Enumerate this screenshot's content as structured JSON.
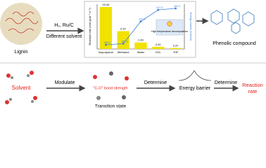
{
  "top_row": {
    "start_label": "Lignin",
    "reagents": "H₂, Ru/C",
    "condition": "Different solvent",
    "product_label": "Phenolic compound"
  },
  "inset_chart": {
    "y_label": "Reaction rate (mol·gcat⁻¹·h⁻¹)",
    "y2_label": "Energy barrier (kJ/mol)",
    "categories": [
      "Isopropanol",
      "Methanol",
      "Water",
      "GVL",
      "THF"
    ],
    "bar_values": [
      15.44,
      6.57,
      2.4,
      0.81,
      0.37
    ],
    "bar_value_labels": [
      "15.44",
      "6.57",
      "2.40",
      "0.81",
      "0.37"
    ],
    "bar_color": "#f2e200",
    "line_values": [
      283.2,
      287.6,
      372.9,
      417.5,
      423.3
    ],
    "line_value_labels": [
      "283.2",
      "287.6",
      "372.9",
      "417.5",
      "423.3"
    ],
    "line_color": "#3d7fd9",
    "annotation": "High temperature decomposition"
  },
  "bottom_row": {
    "solvent": "Solvent",
    "step1": "Modulate",
    "bond_label": "\"C-O\" bond strength",
    "ts_label": "Transition state",
    "step2": "Determine",
    "barrier": "Energy barrier",
    "step3": "Determine",
    "rate": "Reaction rate"
  }
}
